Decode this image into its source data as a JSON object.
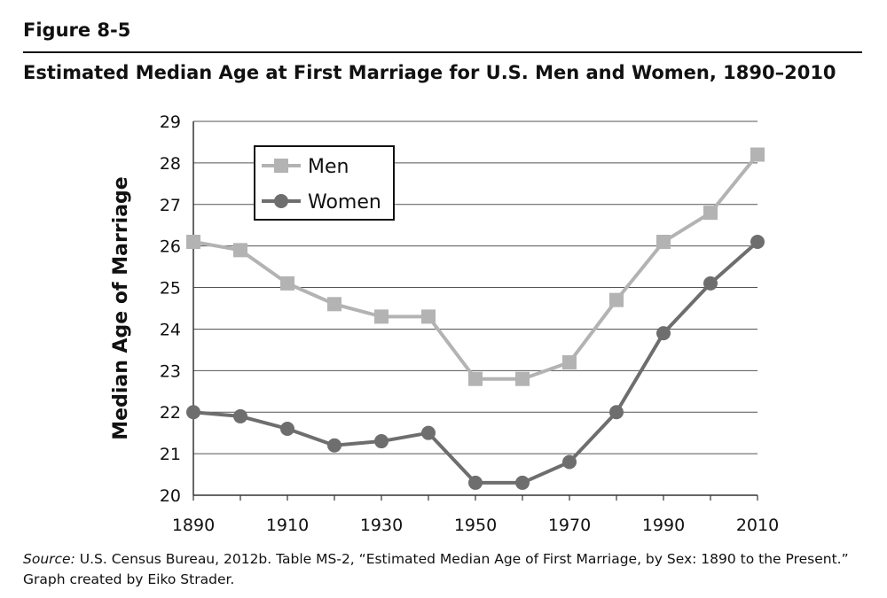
{
  "figure": {
    "label": "Figure 8-5",
    "title": "Estimated Median Age at First Marriage for U.S. Men and Women, 1890–2010"
  },
  "source": {
    "label": "Source:",
    "text": " U.S. Census Bureau, 2012b. Table MS-2, “Estimated Median Age of First Marriage, by Sex: 1890 to the Present.” Graph created by Eiko Strader."
  },
  "chart_data": {
    "type": "line",
    "title": "Estimated Median Age at First Marriage for U.S. Men and Women, 1890–2010",
    "xlabel": "",
    "ylabel": "Median Age of Marriage",
    "x": [
      1890,
      1900,
      1910,
      1920,
      1930,
      1940,
      1950,
      1960,
      1970,
      1980,
      1990,
      2000,
      2010
    ],
    "xticks": [
      1890,
      1910,
      1930,
      1950,
      1970,
      1990,
      2010
    ],
    "xlim": [
      1890,
      2010
    ],
    "ylim": [
      20,
      29
    ],
    "yticks": [
      20,
      21,
      22,
      23,
      24,
      25,
      26,
      27,
      28,
      29
    ],
    "grid": true,
    "legend_position": "top-left",
    "series": [
      {
        "name": "Men",
        "marker": "square",
        "color": "#b3b3b3",
        "values": [
          26.1,
          25.9,
          25.1,
          24.6,
          24.3,
          24.3,
          22.8,
          22.8,
          23.2,
          24.7,
          26.1,
          26.8,
          28.2
        ]
      },
      {
        "name": "Women",
        "marker": "circle",
        "color": "#6e6e6e",
        "values": [
          22.0,
          21.9,
          21.6,
          21.2,
          21.3,
          21.5,
          20.3,
          20.3,
          20.8,
          22.0,
          23.9,
          25.1,
          26.1
        ]
      }
    ]
  }
}
